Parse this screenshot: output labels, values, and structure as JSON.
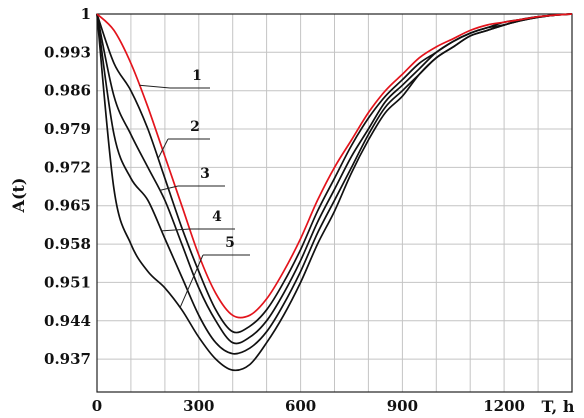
{
  "chart_data": {
    "type": "line",
    "xlabel": "T, h",
    "ylabel": "A(t)",
    "xlim": [
      0,
      1400
    ],
    "ylim": [
      0.931,
      1.0
    ],
    "x_ticks": [
      "0",
      "300",
      "600",
      "900",
      "1200"
    ],
    "y_ticks": [
      "1",
      "0.993",
      "0.986",
      "0.979",
      "0.972",
      "0.965",
      "0.958",
      "0.951",
      "0.944",
      "0.937"
    ],
    "grid": true,
    "series": [
      {
        "name": "1",
        "color": "#e3141c",
        "x": [
          0,
          50,
          100,
          150,
          200,
          250,
          300,
          350,
          400,
          450,
          500,
          550,
          600,
          650,
          700,
          750,
          800,
          850,
          900,
          950,
          1000,
          1050,
          1100,
          1150,
          1200,
          1250,
          1300,
          1350,
          1400
        ],
        "y": [
          1.0,
          0.997,
          0.991,
          0.983,
          0.974,
          0.965,
          0.956,
          0.949,
          0.945,
          0.945,
          0.948,
          0.953,
          0.959,
          0.966,
          0.972,
          0.977,
          0.982,
          0.986,
          0.989,
          0.992,
          0.994,
          0.9955,
          0.997,
          0.998,
          0.9985,
          0.999,
          0.9995,
          0.9998,
          1.0
        ]
      },
      {
        "name": "2",
        "color": "#111111",
        "x": [
          0,
          50,
          100,
          150,
          200,
          250,
          300,
          350,
          400,
          450,
          500,
          550,
          600,
          650,
          700,
          750,
          800,
          850,
          900,
          950,
          1000,
          1050,
          1100,
          1150,
          1200,
          1250,
          1300,
          1350,
          1400
        ],
        "y": [
          1.0,
          0.991,
          0.986,
          0.979,
          0.97,
          0.961,
          0.953,
          0.946,
          0.942,
          0.943,
          0.946,
          0.951,
          0.957,
          0.964,
          0.97,
          0.976,
          0.981,
          0.985,
          0.988,
          0.991,
          0.993,
          0.995,
          0.9965,
          0.9975,
          0.9985,
          0.999,
          0.9995,
          0.9998,
          1.0
        ]
      },
      {
        "name": "3",
        "color": "#111111",
        "x": [
          0,
          50,
          100,
          150,
          200,
          250,
          300,
          350,
          400,
          450,
          500,
          550,
          600,
          650,
          700,
          750,
          800,
          850,
          900,
          950,
          1000,
          1050,
          1100,
          1150,
          1200,
          1250,
          1300,
          1350,
          1400
        ],
        "y": [
          1.0,
          0.985,
          0.978,
          0.972,
          0.966,
          0.958,
          0.95,
          0.944,
          0.94,
          0.941,
          0.944,
          0.949,
          0.955,
          0.962,
          0.968,
          0.974,
          0.979,
          0.984,
          0.987,
          0.99,
          0.993,
          0.995,
          0.9965,
          0.9975,
          0.998,
          0.999,
          0.9995,
          0.9998,
          1.0
        ]
      },
      {
        "name": "4",
        "color": "#111111",
        "x": [
          0,
          50,
          100,
          150,
          200,
          250,
          300,
          350,
          400,
          450,
          500,
          550,
          600,
          650,
          700,
          750,
          800,
          850,
          900,
          950,
          1000,
          1050,
          1100,
          1150,
          1200,
          1250,
          1300,
          1350,
          1400
        ],
        "y": [
          1.0,
          0.978,
          0.97,
          0.966,
          0.959,
          0.952,
          0.945,
          0.94,
          0.938,
          0.939,
          0.942,
          0.947,
          0.953,
          0.96,
          0.966,
          0.972,
          0.978,
          0.983,
          0.986,
          0.989,
          0.992,
          0.994,
          0.996,
          0.997,
          0.998,
          0.9988,
          0.9994,
          0.9998,
          1.0
        ]
      },
      {
        "name": "5",
        "color": "#111111",
        "x": [
          0,
          50,
          100,
          150,
          200,
          250,
          300,
          350,
          400,
          450,
          500,
          550,
          600,
          650,
          700,
          750,
          800,
          850,
          900,
          950,
          1000,
          1050,
          1100,
          1150,
          1200,
          1250,
          1300,
          1350,
          1400
        ],
        "y": [
          1.0,
          0.968,
          0.958,
          0.953,
          0.95,
          0.946,
          0.941,
          0.937,
          0.935,
          0.936,
          0.94,
          0.945,
          0.951,
          0.958,
          0.964,
          0.971,
          0.977,
          0.982,
          0.985,
          0.989,
          0.992,
          0.994,
          0.996,
          0.997,
          0.998,
          0.9988,
          0.9994,
          0.9998,
          1.0
        ]
      }
    ]
  }
}
